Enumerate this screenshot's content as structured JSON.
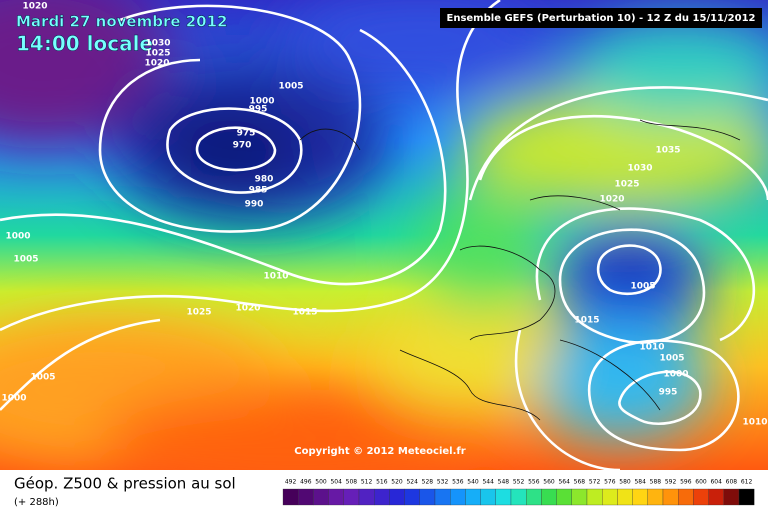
{
  "header": {
    "date": "Mardi 27 novembre 2012",
    "time": "14:00 locale",
    "model": "Ensemble GEFS (Perturbation 10)  -  12 Z du 15/11/2012"
  },
  "isobar_labels": [
    "1020",
    "1030",
    "1025",
    "1020",
    "1005",
    "1000",
    "995",
    "975",
    "970",
    "980",
    "985",
    "990",
    "1000",
    "1005",
    "1010",
    "1025",
    "1020",
    "1015",
    "1005",
    "1000",
    "1035",
    "1030",
    "1025",
    "1020",
    "1005",
    "1015",
    "1010",
    "1005",
    "1000",
    "995",
    "1010"
  ],
  "copyright": "Copyright © 2012 Meteociel.fr",
  "footer": {
    "title": "Géop. Z500 & pression au sol",
    "lead_time": "(+ 288h)"
  },
  "scale": {
    "ticks": [
      492,
      496,
      500,
      504,
      508,
      512,
      516,
      520,
      524,
      528,
      532,
      536,
      540,
      544,
      548,
      552,
      556,
      560,
      564,
      568,
      572,
      576,
      580,
      584,
      588,
      592,
      596,
      600,
      604,
      608,
      612
    ]
  }
}
